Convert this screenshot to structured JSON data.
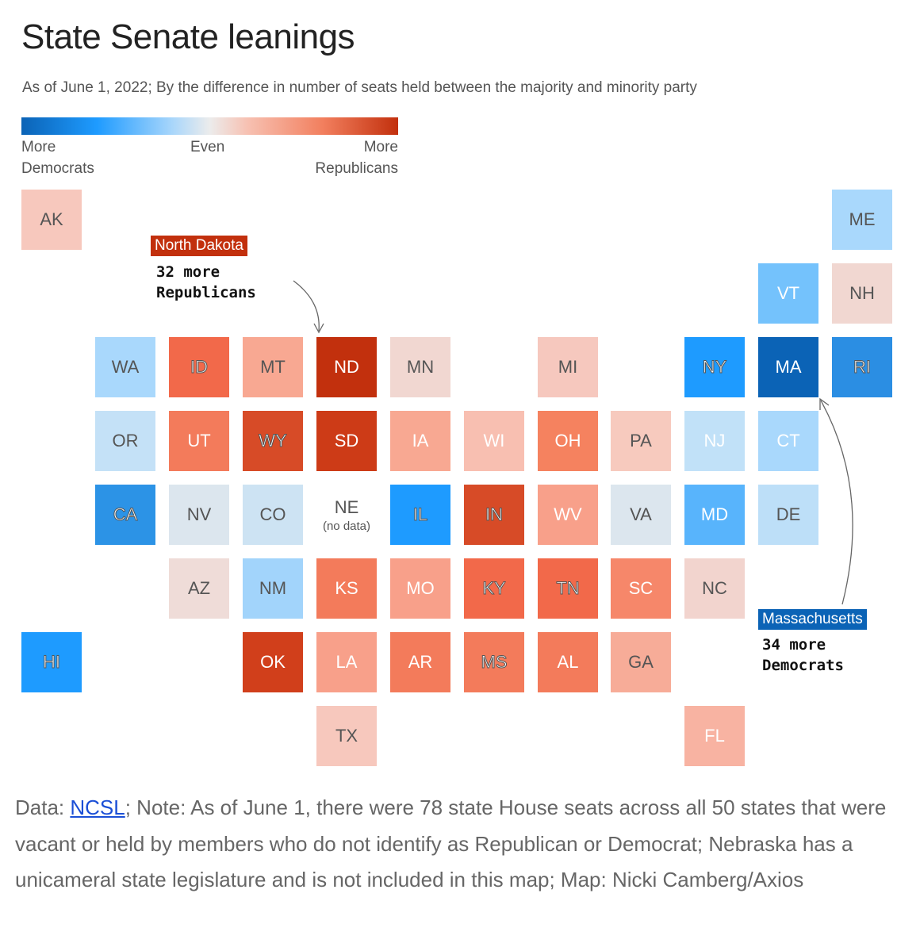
{
  "title": "State Senate leanings",
  "subtitle": "As of June 1, 2022; By the difference in number of seats held between the majority and minority party",
  "legend": {
    "left": [
      "More",
      "Democrats"
    ],
    "mid": "Even",
    "right": [
      "More",
      "Republicans"
    ]
  },
  "states": [
    {
      "abbr": "AK",
      "color": "#f7c8bd"
    },
    {
      "abbr": "ME",
      "color": "#a9d8fc"
    },
    {
      "abbr": "VT",
      "color": "#74c2fc"
    },
    {
      "abbr": "NH",
      "color": "#f1d7d1"
    },
    {
      "abbr": "WA",
      "color": "#a9d8fc"
    },
    {
      "abbr": "ID",
      "color": "#f2694a"
    },
    {
      "abbr": "MT",
      "color": "#f8a892"
    },
    {
      "abbr": "ND",
      "color": "#c2300d"
    },
    {
      "abbr": "MN",
      "color": "#f1d7d1"
    },
    {
      "abbr": "MI",
      "color": "#f6c8be"
    },
    {
      "abbr": "NY",
      "color": "#1e9bff"
    },
    {
      "abbr": "MA",
      "color": "#0b63b6"
    },
    {
      "abbr": "RI",
      "color": "#2b8ee3"
    },
    {
      "abbr": "OR",
      "color": "#c4e1f7"
    },
    {
      "abbr": "UT",
      "color": "#f37b5b"
    },
    {
      "abbr": "WY",
      "color": "#d74b27"
    },
    {
      "abbr": "SD",
      "color": "#cd3b17"
    },
    {
      "abbr": "IA",
      "color": "#f8a892"
    },
    {
      "abbr": "WI",
      "color": "#f8bfb1"
    },
    {
      "abbr": "OH",
      "color": "#f5825f"
    },
    {
      "abbr": "PA",
      "color": "#f7cabe"
    },
    {
      "abbr": "NJ",
      "color": "#c1e1f8"
    },
    {
      "abbr": "CT",
      "color": "#a9d8fc"
    },
    {
      "abbr": "CA",
      "color": "#2c93e6"
    },
    {
      "abbr": "NV",
      "color": "#dce6ee"
    },
    {
      "abbr": "CO",
      "color": "#cde3f3"
    },
    {
      "abbr": "NE",
      "note": "(no data)",
      "color": "#ffffff"
    },
    {
      "abbr": "IL",
      "color": "#1e9bff"
    },
    {
      "abbr": "IN",
      "color": "#d74b27"
    },
    {
      "abbr": "WV",
      "color": "#f8a08a"
    },
    {
      "abbr": "VA",
      "color": "#dce6ee"
    },
    {
      "abbr": "MD",
      "color": "#58b4fc"
    },
    {
      "abbr": "DE",
      "color": "#bddff8"
    },
    {
      "abbr": "AZ",
      "color": "#efdcd8"
    },
    {
      "abbr": "NM",
      "color": "#a2d4fb"
    },
    {
      "abbr": "KS",
      "color": "#f37b5b"
    },
    {
      "abbr": "MO",
      "color": "#f8a08a"
    },
    {
      "abbr": "KY",
      "color": "#f2694a"
    },
    {
      "abbr": "TN",
      "color": "#f2694a"
    },
    {
      "abbr": "SC",
      "color": "#f6876a"
    },
    {
      "abbr": "NC",
      "color": "#f2d4ce"
    },
    {
      "abbr": "HI",
      "color": "#1e9bff"
    },
    {
      "abbr": "OK",
      "color": "#d13f1b"
    },
    {
      "abbr": "LA",
      "color": "#f8a08a"
    },
    {
      "abbr": "AR",
      "color": "#f37b5b"
    },
    {
      "abbr": "MS",
      "color": "#f37b5b"
    },
    {
      "abbr": "AL",
      "color": "#f37b5b"
    },
    {
      "abbr": "GA",
      "color": "#f7ac98"
    },
    {
      "abbr": "TX",
      "color": "#f7c8bd"
    },
    {
      "abbr": "FL",
      "color": "#f8b3a2"
    }
  ],
  "callouts": {
    "north_dakota": {
      "name": "North Dakota",
      "text": "32 more\nRepublicans",
      "color": "#c2300d"
    },
    "massachusetts": {
      "name": "Massachusetts",
      "text": "34 more\nDemocrats",
      "color": "#0b63b6"
    }
  },
  "footer": {
    "prefix": "Data: ",
    "link": "NCSL",
    "rest": "; Note: As of June 1, there were 78 state House seats across all 50 states that were vacant or held by members who do not identify as Republican or Democrat; Nebraska has a unicameral state legislature and is not included in this map; Map: Nicki Camberg/Axios"
  }
}
